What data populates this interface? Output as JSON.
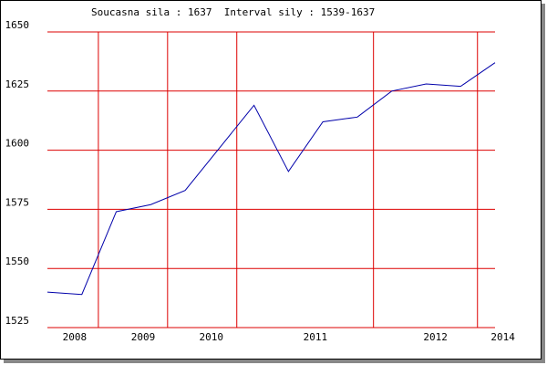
{
  "chart_data": {
    "type": "line",
    "title": "Soucasna sila : 1637  Interval sily : 1539-1637",
    "categories": [
      null,
      null,
      null,
      null,
      null,
      null,
      null,
      null,
      null,
      null,
      null,
      null,
      null,
      null
    ],
    "series": [
      {
        "color": "#0000aa",
        "values": [
          1540,
          1539,
          1574,
          1577,
          1583,
          1601,
          1619,
          1591,
          1612,
          1614,
          1625,
          1628,
          1627,
          1637
        ]
      }
    ],
    "xlim": [
      0,
      13
    ],
    "xticks": [
      {
        "value": 0.79,
        "label": "2008"
      },
      {
        "value": 2.78,
        "label": "2009"
      },
      {
        "value": 4.76,
        "label": "2010"
      },
      {
        "value": 7.78,
        "label": "2011"
      },
      {
        "value": 11.27,
        "label": "2012"
      },
      {
        "value": 13.23,
        "label": "2014"
      }
    ],
    "xgrid": [
      1.48,
      3.49,
      5.5,
      9.47,
      12.49
    ],
    "ylim": [
      1525,
      1650
    ],
    "yticks": [
      1525,
      1550,
      1575,
      1600,
      1625,
      1650
    ],
    "grid": true,
    "grid_color": "#dd0000"
  }
}
